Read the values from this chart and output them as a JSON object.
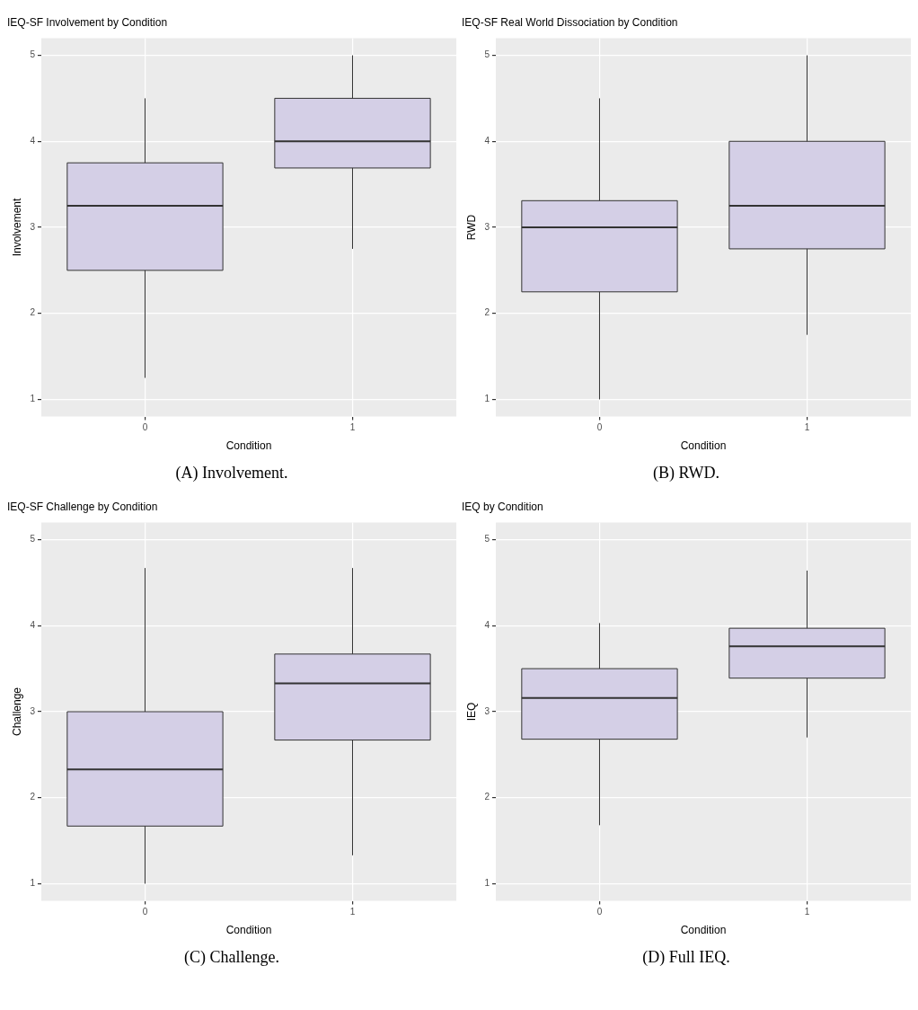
{
  "chart_data": [
    {
      "type": "box",
      "title": "IEQ-SF Involvement by Condition",
      "xlabel": "Condition",
      "ylabel": "Involvement",
      "categories": [
        "0",
        "1"
      ],
      "color": "#d4cfe6",
      "ylim": [
        0.8,
        5.2
      ],
      "yticks": [
        1,
        2,
        3,
        4,
        5
      ],
      "grid": true,
      "annotations": [
        "(A) Involvement."
      ],
      "boxes": [
        {
          "low": 1.25,
          "q1": 2.5,
          "median": 3.25,
          "q3": 3.75,
          "high": 4.5
        },
        {
          "low": 2.75,
          "q1": 3.69,
          "median": 4,
          "q3": 4.5,
          "high": 5
        }
      ]
    },
    {
      "type": "box",
      "title": "IEQ-SF Real World Dissociation by Condition",
      "xlabel": "Condition",
      "ylabel": "RWD",
      "categories": [
        "0",
        "1"
      ],
      "color": "#d4cfe6",
      "ylim": [
        0.8,
        5.2
      ],
      "yticks": [
        1,
        2,
        3,
        4,
        5
      ],
      "grid": true,
      "annotations": [
        "(B) RWD."
      ],
      "boxes": [
        {
          "low": 1,
          "q1": 2.25,
          "median": 3,
          "q3": 3.31,
          "high": 4.5
        },
        {
          "low": 1.75,
          "q1": 2.75,
          "median": 3.25,
          "q3": 4,
          "high": 5
        }
      ]
    },
    {
      "type": "box",
      "title": "IEQ-SF Challenge by Condition",
      "xlabel": "Condition",
      "ylabel": "Challenge",
      "categories": [
        "0",
        "1"
      ],
      "color": "#d4cfe6",
      "ylim": [
        0.8,
        5.2
      ],
      "yticks": [
        1,
        2,
        3,
        4,
        5
      ],
      "grid": true,
      "annotations": [
        "(C) Challenge."
      ],
      "boxes": [
        {
          "low": 1,
          "q1": 1.67,
          "median": 2.33,
          "q3": 3,
          "high": 4.67
        },
        {
          "low": 1.33,
          "q1": 2.67,
          "median": 3.33,
          "q3": 3.67,
          "high": 4.67
        }
      ]
    },
    {
      "type": "box",
      "title": "IEQ by Condition",
      "xlabel": "Condition",
      "ylabel": "IEQ",
      "categories": [
        "0",
        "1"
      ],
      "color": "#d4cfe6",
      "ylim": [
        0.8,
        5.2
      ],
      "yticks": [
        1,
        2,
        3,
        4,
        5
      ],
      "grid": true,
      "annotations": [
        "(D) Full IEQ."
      ],
      "boxes": [
        {
          "low": 1.68,
          "q1": 2.68,
          "median": 3.16,
          "q3": 3.5,
          "high": 4.03
        },
        {
          "low": 2.7,
          "q1": 3.39,
          "median": 3.76,
          "q3": 3.97,
          "high": 4.64
        }
      ]
    }
  ]
}
